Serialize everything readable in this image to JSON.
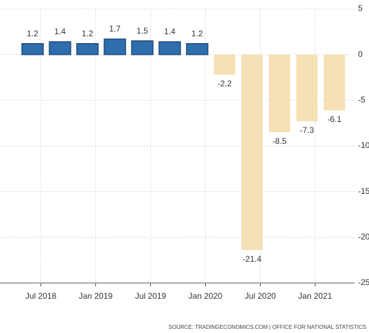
{
  "chart_data": {
    "type": "bar",
    "categories": [
      null,
      "Jul 2018",
      null,
      "Jan 2019",
      null,
      "Jul 2019",
      null,
      "Jan 2020",
      null,
      "Jul 2020",
      null,
      "Jan 2021"
    ],
    "values": [
      1.2,
      1.4,
      1.2,
      1.7,
      1.5,
      1.4,
      1.2,
      -2.2,
      -21.4,
      -8.5,
      -7.3,
      -6.1
    ],
    "color": "#2f6ead",
    "negative_color": "#f6e0b5",
    "ylim": [
      -25,
      5
    ],
    "yticks": [
      5,
      0,
      -5,
      -10,
      -15,
      -20,
      -25
    ],
    "grid": true,
    "source": "SOURCE: TRADINGECONOMICS.COM | OFFICE FOR NATIONAL STATISTICS"
  }
}
